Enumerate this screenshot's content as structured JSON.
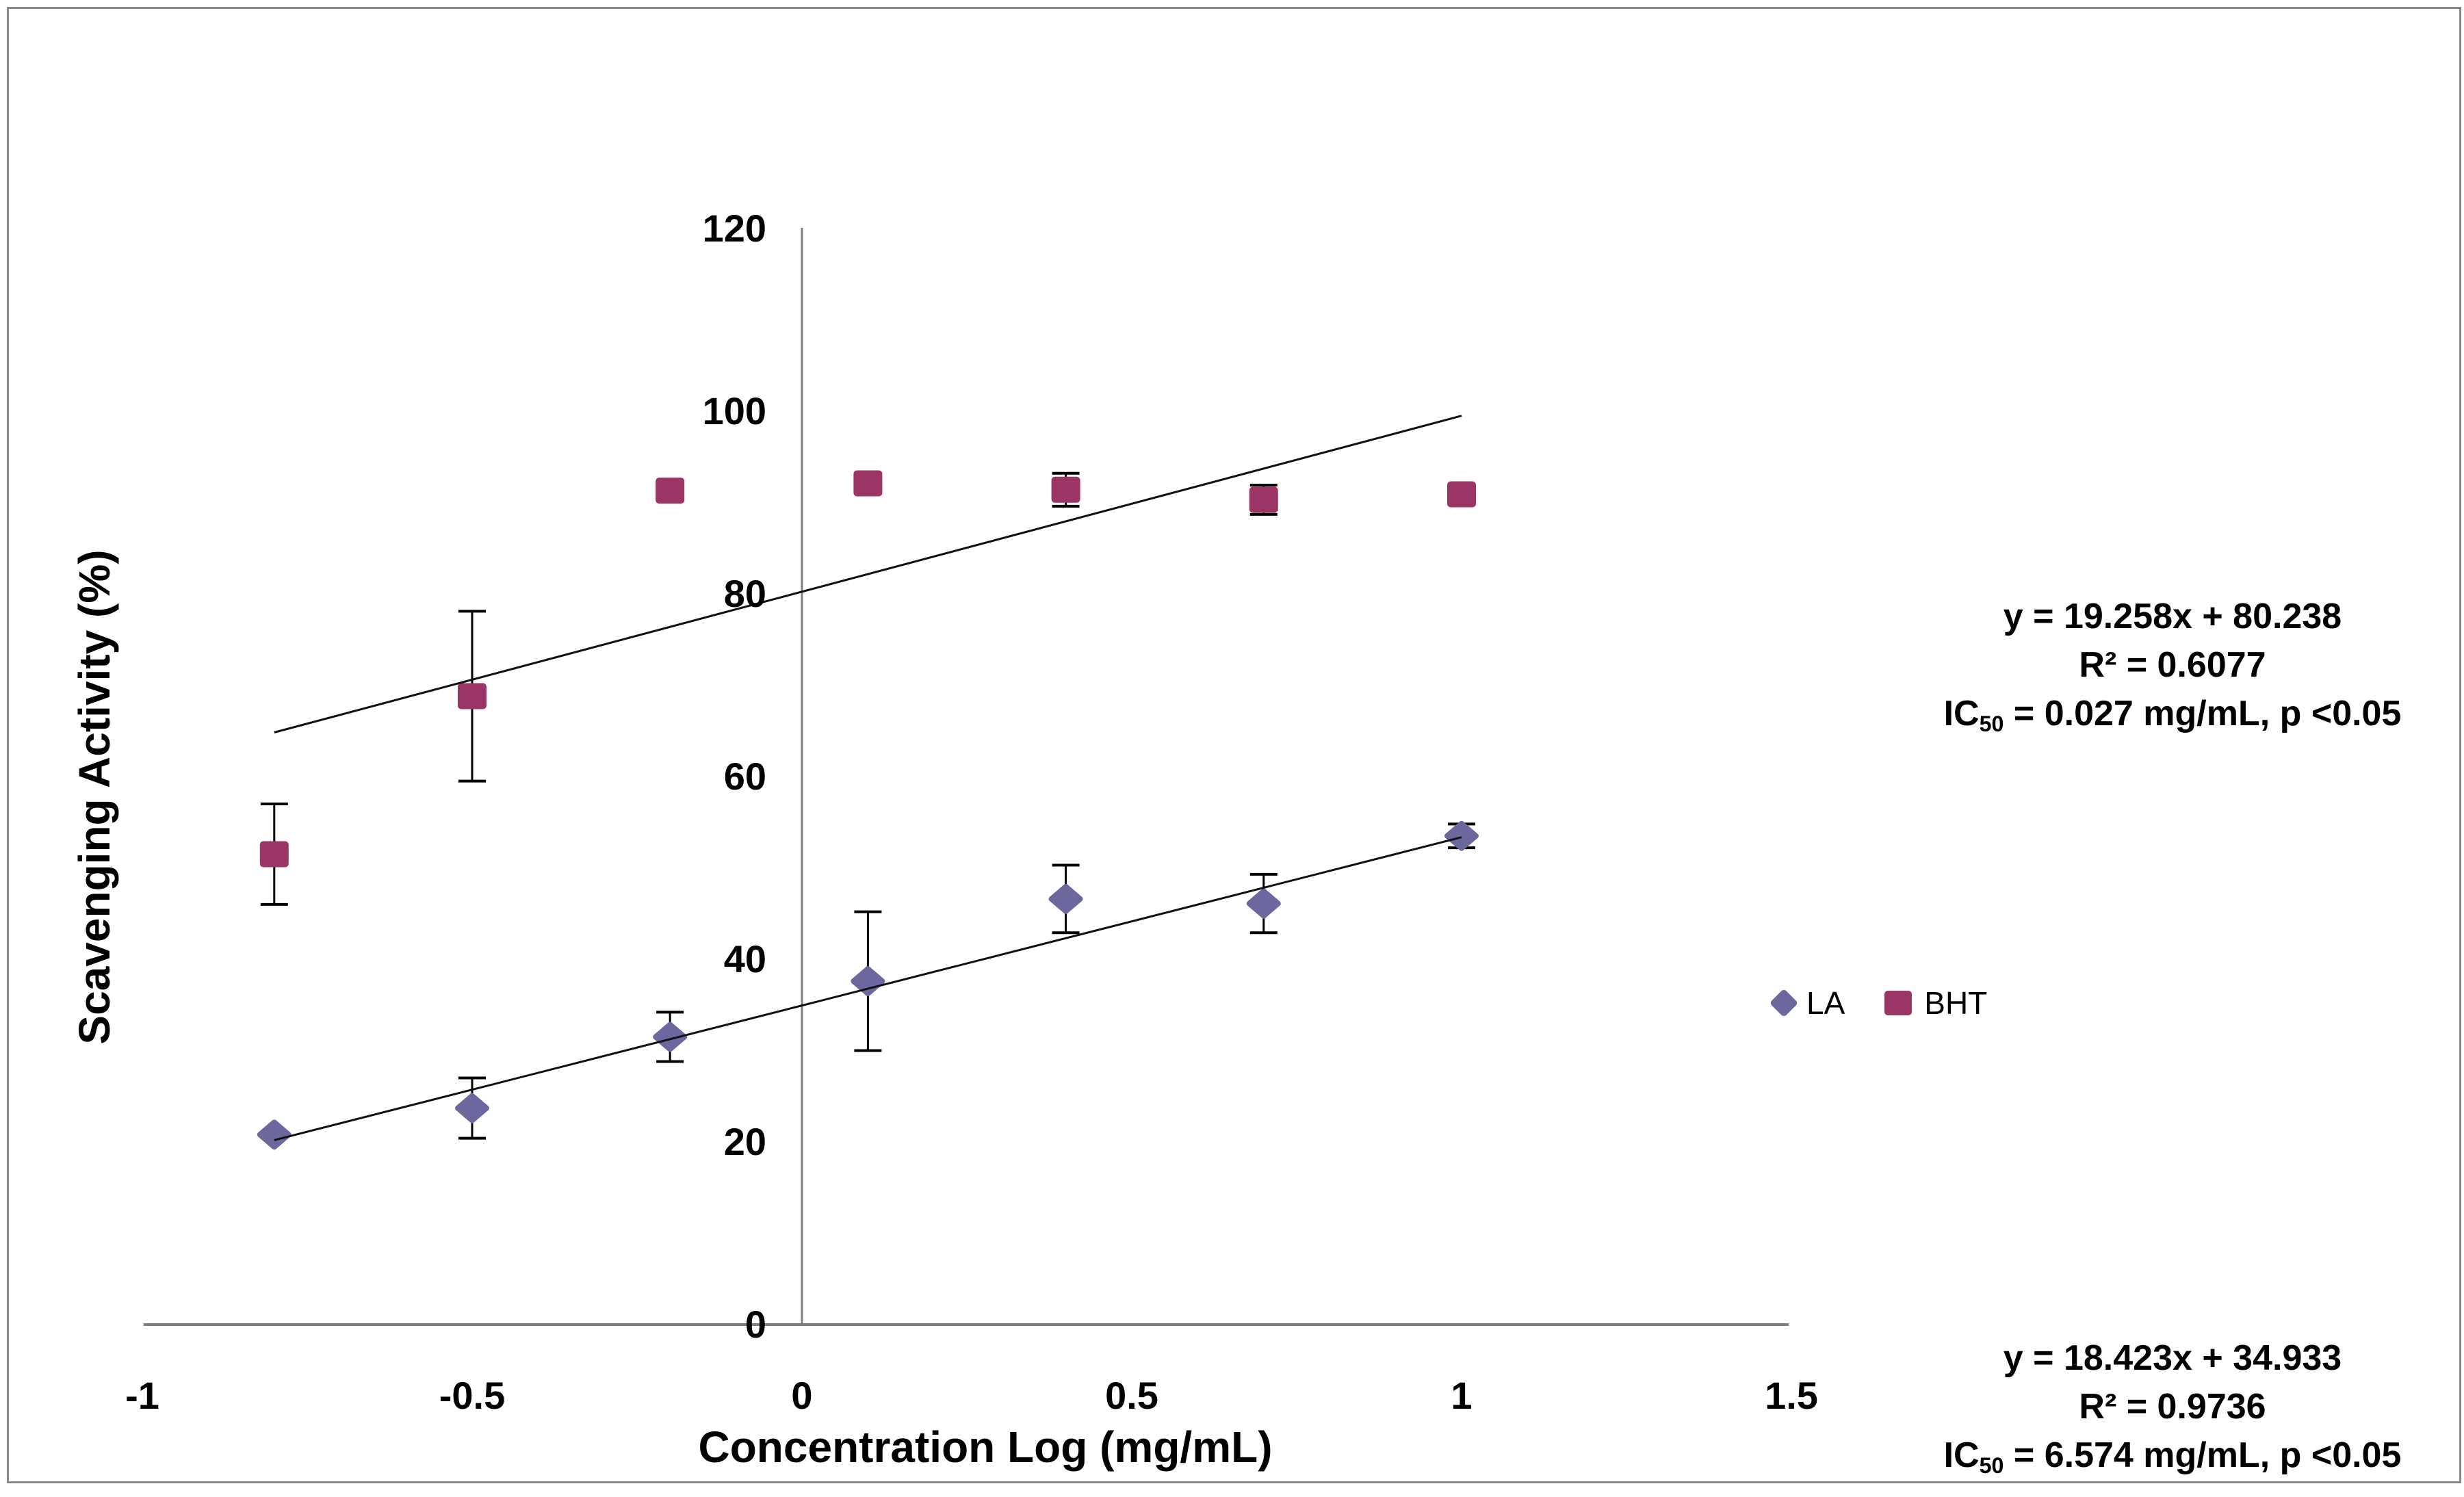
{
  "axis_titles": {
    "x": "Concentration Log (mg/mL)",
    "y": "Scavenging Activity (%)"
  },
  "annotations": {
    "bht": {
      "line1": "y = 19.258x + 80.238",
      "line2": "R² = 0.6077",
      "ic_prefix": "IC",
      "ic_sub": "50",
      "ic_rest": " = 0.027 mg/mL, p <0.05"
    },
    "la": {
      "line1": "y = 18.423x + 34.933",
      "line2": "R² = 0.9736",
      "ic_prefix": "IC",
      "ic_sub": "50",
      "ic_rest": " = 6.574 mg/mL, p <0.05"
    }
  },
  "chart_data": {
    "type": "scatter",
    "xlabel": "Concentration Log (mg/mL)",
    "ylabel": "Scavenging Activity (%)",
    "grid": false,
    "legend_position": "right",
    "x_axis": {
      "min": -1,
      "max": 1.5,
      "ticks": [
        {
          "value": -1,
          "label": "-1"
        },
        {
          "value": -0.5,
          "label": "-0.5"
        },
        {
          "value": 0,
          "label": "0"
        },
        {
          "value": 0.5,
          "label": "0.5"
        },
        {
          "value": 1,
          "label": "1"
        },
        {
          "value": 1.5,
          "label": "1.5"
        }
      ]
    },
    "y_axis": {
      "min": 0,
      "max": 120,
      "ticks": [
        {
          "value": 120,
          "label": "120"
        },
        {
          "value": 100,
          "label": "100"
        },
        {
          "value": 80,
          "label": "80"
        },
        {
          "value": 60,
          "label": "60"
        },
        {
          "value": 40,
          "label": "40"
        },
        {
          "value": 20,
          "label": "20"
        },
        {
          "value": 0,
          "label": "0"
        }
      ]
    },
    "series": [
      {
        "name": "LA",
        "marker": "diamond",
        "color": "#6B689E",
        "points": [
          {
            "x": -0.8,
            "y": 20.8,
            "err": null
          },
          {
            "x": -0.5,
            "y": 23.7,
            "err": 3.3
          },
          {
            "x": -0.2,
            "y": 31.5,
            "err": 2.7
          },
          {
            "x": 0.1,
            "y": 37.6,
            "err": 7.6
          },
          {
            "x": 0.4,
            "y": 46.6,
            "err": 3.7
          },
          {
            "x": 0.7,
            "y": 46.1,
            "err": 3.2
          },
          {
            "x": 1.0,
            "y": 53.5,
            "err": 1.3
          }
        ],
        "trendline": {
          "slope": 18.423,
          "intercept": 34.933,
          "x_start": -0.8,
          "x_end": 1.0
        }
      },
      {
        "name": "BHT",
        "marker": "square",
        "color": "#9A3566",
        "points": [
          {
            "x": -0.8,
            "y": 51.5,
            "err": 5.5
          },
          {
            "x": -0.5,
            "y": 68.8,
            "err": 9.3
          },
          {
            "x": -0.2,
            "y": 91.3,
            "err": null
          },
          {
            "x": 0.1,
            "y": 92.1,
            "err": null
          },
          {
            "x": 0.4,
            "y": 91.4,
            "err": 1.8
          },
          {
            "x": 0.7,
            "y": 90.3,
            "err": 1.6
          },
          {
            "x": 1.0,
            "y": 90.9,
            "err": null
          }
        ],
        "trendline": {
          "slope": 19.258,
          "intercept": 80.238,
          "x_start": -0.8,
          "x_end": 1.0
        }
      }
    ]
  }
}
